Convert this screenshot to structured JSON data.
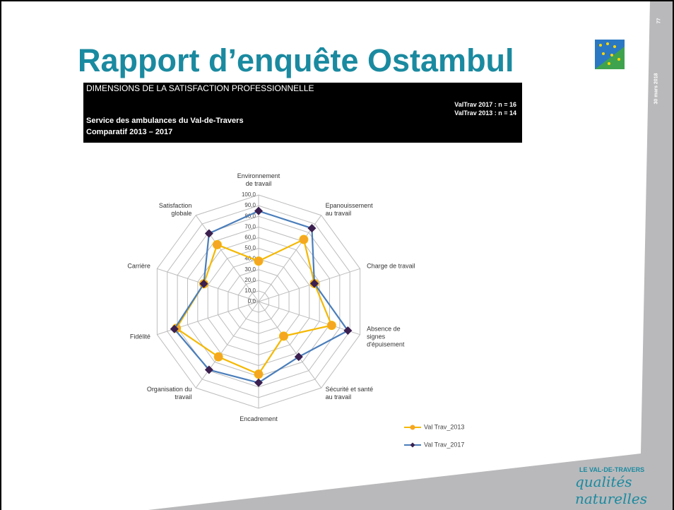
{
  "slide": {
    "title": "Rapport d’enquête Ostambul",
    "page_number": "77",
    "date": "30 mars 2018",
    "header": {
      "heading": "DIMENSIONS DE LA SATISFACTION PROFESSIONNELLE",
      "n_2017": "ValTrav 2017 : n = 16",
      "n_2013": "ValTrav 2013 : n = 14",
      "service": "Service des ambulances du Val-de-Travers",
      "comparison": "Comparatif 2013 – 2017"
    },
    "logo": {
      "line1": "LE VAL-DE-TRAVERS",
      "line2": "qualités naturelles"
    }
  },
  "chart_data": {
    "type": "radar",
    "categories": [
      "Environnement\nde travail",
      "Epanouissement\nau travail",
      "Charge de travail",
      "Absence de\nsignes\nd'épuisement",
      "Sécurité et santé\nau travail",
      "Encadrement",
      "Organisation du\ntravail",
      "Fidélité",
      "Carrière",
      "Satisfaction\nglobale"
    ],
    "series": [
      {
        "name": "Val Trav_2013",
        "color": "#f5b800",
        "marker_color": "#f5a623",
        "marker": "circle",
        "values": [
          38,
          72,
          55,
          72,
          40,
          68,
          64,
          81,
          54,
          66
        ]
      },
      {
        "name": "Val Trav_2017",
        "color": "#4a7ebb",
        "marker_color": "#3a1f4f",
        "marker": "diamond",
        "values": [
          85,
          85,
          55,
          88,
          64,
          76,
          79,
          83,
          54,
          79
        ]
      }
    ],
    "ylim": [
      0,
      100
    ],
    "yticks": [
      {
        "value": 0,
        "label": "0,0"
      },
      {
        "value": 10,
        "label": "10,0"
      },
      {
        "value": 20,
        "label": "20,0"
      },
      {
        "value": 30,
        "label": "30,0"
      },
      {
        "value": 40,
        "label": "40,0"
      },
      {
        "value": 50,
        "label": "50,0"
      },
      {
        "value": 60,
        "label": "60,0"
      },
      {
        "value": 70,
        "label": "70,0"
      },
      {
        "value": 80,
        "label": "80,0"
      },
      {
        "value": 90,
        "label": "90,0"
      },
      {
        "value": 100,
        "label": "100,0"
      }
    ],
    "grid": true,
    "legend": "bottom-right"
  }
}
